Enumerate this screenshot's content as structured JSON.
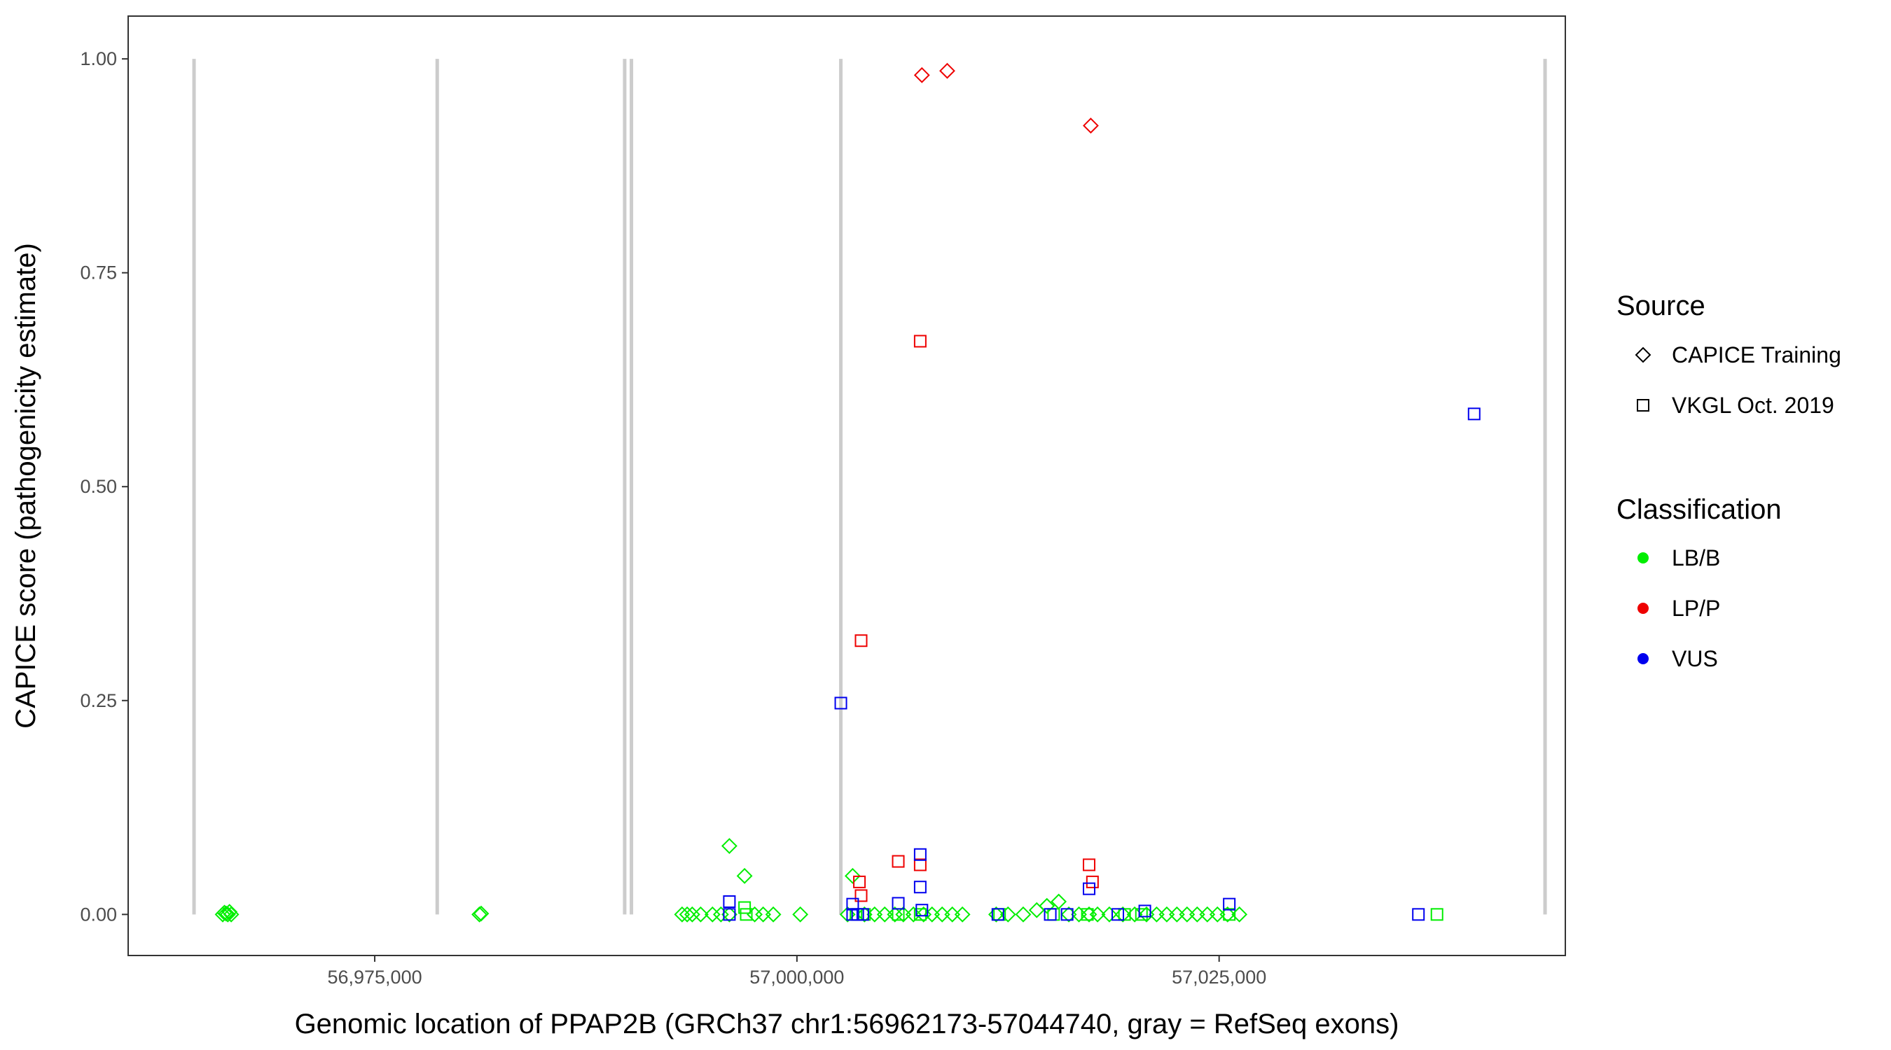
{
  "chart_data": {
    "type": "scatter",
    "title": "",
    "xlabel": "Genomic location of PPAP2B (GRCh37 chr1:56962173-57044740, gray = RefSeq exons)",
    "ylabel": "CAPICE score (pathogenicity estimate)",
    "xlim": [
      56960400,
      57045500
    ],
    "ylim": [
      -0.048,
      1.05
    ],
    "x_ticks": [
      56975000,
      57000000,
      57025000
    ],
    "x_tick_labels": [
      "56,975,000",
      "57,000,000",
      "57,025,000"
    ],
    "y_ticks": [
      0,
      0.25,
      0.5,
      0.75,
      1.0
    ],
    "y_tick_labels": [
      "0.00",
      "0.25",
      "0.50",
      "0.75",
      "1.00"
    ],
    "grid": false,
    "exon_lines": [
      56964300,
      56978700,
      56989800,
      56990200,
      57002600,
      57044300
    ],
    "exon_line_color": "#cccccc",
    "legend": {
      "position": "right",
      "source_title": "Source",
      "source_items": [
        {
          "label": "CAPICE Training",
          "shape": "diamond"
        },
        {
          "label": "VKGL Oct. 2019",
          "shape": "square"
        }
      ],
      "class_title": "Classification",
      "class_items": [
        {
          "label": "LB/B",
          "color": "#00ee00"
        },
        {
          "label": "LP/P",
          "color": "#ee0000"
        },
        {
          "label": "VUS",
          "color": "#0000ee"
        }
      ]
    },
    "series": [
      {
        "shape": "diamond",
        "class": "LB/B",
        "points": [
          [
            56966000,
            0
          ],
          [
            56966100,
            0.002
          ],
          [
            56966200,
            0.001
          ],
          [
            56966300,
            0
          ],
          [
            56966400,
            0.003
          ],
          [
            56966500,
            0
          ],
          [
            56981200,
            0
          ],
          [
            56981300,
            0.001
          ],
          [
            56993200,
            0
          ],
          [
            56993500,
            0
          ],
          [
            56993800,
            0
          ],
          [
            56994300,
            0
          ],
          [
            56995000,
            0
          ],
          [
            56995500,
            0
          ],
          [
            56996000,
            0
          ],
          [
            56996000,
            0.08
          ],
          [
            56996900,
            0.045
          ],
          [
            56997500,
            0
          ],
          [
            56998000,
            0
          ],
          [
            56998600,
            0
          ],
          [
            57000200,
            0
          ],
          [
            57003000,
            0
          ],
          [
            57003300,
            0.045
          ],
          [
            57004000,
            0
          ],
          [
            57004600,
            0
          ],
          [
            57005200,
            0
          ],
          [
            57005800,
            0
          ],
          [
            57006300,
            0
          ],
          [
            57006900,
            0
          ],
          [
            57007500,
            0
          ],
          [
            57008000,
            0
          ],
          [
            57008600,
            0
          ],
          [
            57009200,
            0
          ],
          [
            57009800,
            0
          ],
          [
            57011800,
            0
          ],
          [
            57012500,
            0
          ],
          [
            57013400,
            0
          ],
          [
            57014200,
            0.005
          ],
          [
            57014800,
            0.01
          ],
          [
            57015500,
            0.015
          ],
          [
            57016100,
            0
          ],
          [
            57016700,
            0
          ],
          [
            57017300,
            0
          ],
          [
            57017800,
            0
          ],
          [
            57018500,
            0
          ],
          [
            57019300,
            0
          ],
          [
            57020000,
            0
          ],
          [
            57020700,
            0
          ],
          [
            57021300,
            0
          ],
          [
            57021900,
            0
          ],
          [
            57022500,
            0
          ],
          [
            57023100,
            0
          ],
          [
            57023700,
            0
          ],
          [
            57024300,
            0
          ],
          [
            57024900,
            0
          ],
          [
            57025500,
            0
          ],
          [
            57026200,
            0
          ]
        ]
      },
      {
        "shape": "diamond",
        "class": "LP/P",
        "points": [
          [
            57007400,
            0.981
          ],
          [
            57008900,
            0.986
          ],
          [
            57017400,
            0.922
          ]
        ]
      },
      {
        "shape": "square",
        "class": "LB/B",
        "points": [
          [
            56996900,
            0.008
          ],
          [
            56997000,
            0
          ],
          [
            57003500,
            0
          ],
          [
            57004000,
            0
          ],
          [
            57006000,
            0
          ],
          [
            57007300,
            0
          ],
          [
            57012000,
            0
          ],
          [
            57015200,
            0
          ],
          [
            57017200,
            0
          ],
          [
            57019400,
            0
          ],
          [
            57020400,
            0
          ],
          [
            57025600,
            0
          ],
          [
            57037900,
            0
          ]
        ]
      },
      {
        "shape": "square",
        "class": "LP/P",
        "points": [
          [
            57007300,
            0.67
          ],
          [
            57003800,
            0.32
          ],
          [
            57006000,
            0.062
          ],
          [
            57007300,
            0.058
          ],
          [
            57017300,
            0.058
          ],
          [
            57003700,
            0.038
          ],
          [
            57003800,
            0.022
          ],
          [
            57017500,
            0.038
          ]
        ]
      },
      {
        "shape": "square",
        "class": "VUS",
        "points": [
          [
            57040100,
            0.585
          ],
          [
            57002600,
            0.247
          ],
          [
            57007300,
            0.07
          ],
          [
            57007300,
            0.032
          ],
          [
            57017300,
            0.03
          ],
          [
            56996000,
            0.015
          ],
          [
            57003300,
            0.012
          ],
          [
            57006000,
            0.013
          ],
          [
            57025600,
            0.012
          ],
          [
            57007400,
            0.005
          ],
          [
            56996000,
            0
          ],
          [
            57003300,
            0
          ],
          [
            57003600,
            0
          ],
          [
            57003900,
            0
          ],
          [
            57011900,
            0
          ],
          [
            57015000,
            0
          ],
          [
            57016000,
            0
          ],
          [
            57019000,
            0
          ],
          [
            57020600,
            0.004
          ],
          [
            57036800,
            0
          ]
        ]
      }
    ]
  }
}
